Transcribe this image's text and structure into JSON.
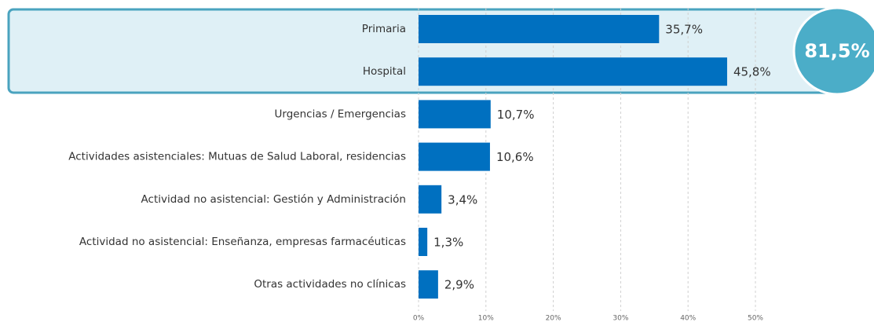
{
  "chart_data": {
    "type": "hbar",
    "categories": [
      "Primaria",
      "Hospital",
      "Urgencias / Emergencias",
      "Actividades asistenciales: Mutuas de Salud Laboral, residencias",
      "Actividad no asistencial: Gestión y Administración",
      "Actividad no asistencial: Enseñanza, empresas farmacéuticas",
      "Otras actividades no clínicas"
    ],
    "values": [
      35.7,
      45.8,
      10.7,
      10.6,
      3.4,
      1.3,
      2.9
    ],
    "value_labels": [
      "35,7%",
      "45,8%",
      "10,7%",
      "10,6%",
      "3,4%",
      "1,3%",
      "2,9%"
    ],
    "color": "#0070c0",
    "xlim": [
      0,
      50
    ],
    "xticks": [
      {
        "value": 0,
        "label": "0%"
      },
      {
        "value": 10,
        "label": "10%"
      },
      {
        "value": 20,
        "label": "20%"
      },
      {
        "value": 30,
        "label": "30%"
      },
      {
        "value": 40,
        "label": "40%"
      },
      {
        "value": 50,
        "label": "50%"
      }
    ],
    "grid": true,
    "annotation": "81,5%"
  }
}
